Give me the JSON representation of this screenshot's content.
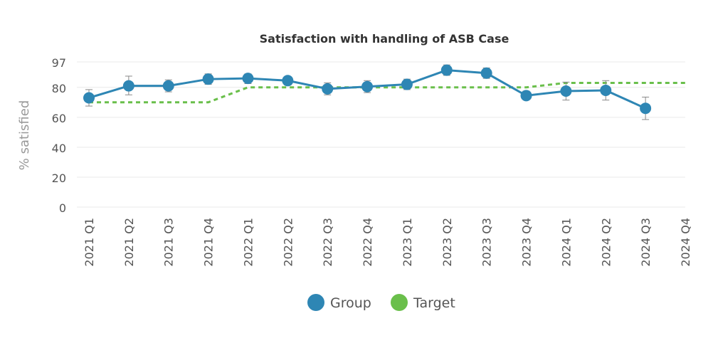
{
  "chart_data": {
    "type": "line",
    "title": "Satisfaction with handling of ASB Case",
    "ylabel": "% satisfied",
    "xlabel": "",
    "ylim": [
      0,
      97
    ],
    "yticks": [
      0,
      20,
      40,
      60,
      80,
      97
    ],
    "categories": [
      "2021 Q1",
      "2021 Q2",
      "2021 Q3",
      "2021 Q4",
      "2022 Q1",
      "2022 Q2",
      "2022 Q3",
      "2022 Q4",
      "2023 Q1",
      "2023 Q2",
      "2023 Q3",
      "2023 Q4",
      "2024 Q1",
      "2024 Q2",
      "2024 Q3",
      "2024 Q4"
    ],
    "grid": true,
    "legend_position": "bottom",
    "series": [
      {
        "name": "Group",
        "color": "#2e86b4",
        "style": "solid-markers",
        "values": [
          73,
          81,
          81,
          85.5,
          86,
          84.5,
          79,
          80.5,
          82,
          91.5,
          89.5,
          74.5,
          77.5,
          78,
          66,
          null
        ],
        "error_low": [
          67.5,
          75,
          77,
          82,
          82.5,
          81.5,
          75,
          76.5,
          78.5,
          88,
          86,
          72,
          71.5,
          71.5,
          58.5,
          null
        ],
        "error_high": [
          78.5,
          87.5,
          85,
          89,
          89,
          87,
          83,
          84.5,
          85.5,
          95,
          93,
          77.5,
          83.5,
          84.5,
          73.5,
          null
        ]
      },
      {
        "name": "Target",
        "color": "#6abf4b",
        "style": "dashed",
        "values": [
          70,
          70,
          70,
          70,
          80,
          80,
          80,
          80,
          80,
          80,
          80,
          80,
          83,
          83,
          83,
          83
        ]
      }
    ]
  }
}
